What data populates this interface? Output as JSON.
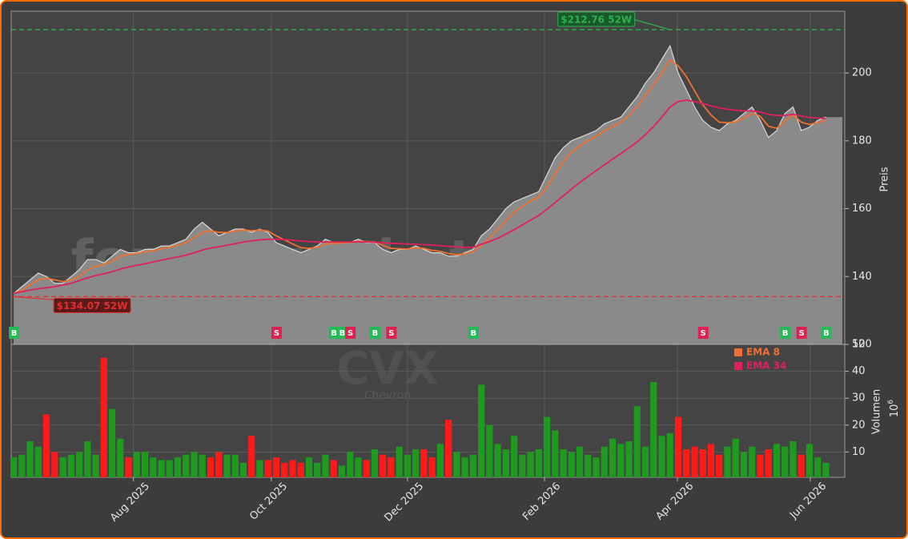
{
  "chart_data": {
    "type": "stock",
    "price_label": "Preis",
    "volume_label": "Volumen",
    "volume_unit": {
      "base": "10",
      "exp": "6"
    },
    "watermark": "forexsignale.trade",
    "ticker": "CVX",
    "company": "Chevron",
    "xlim": [
      -0.3,
      101.3
    ],
    "xticks": [
      {
        "value": 14.6,
        "label": "Aug 2025"
      },
      {
        "value": 31.4,
        "label": "Oct 2025"
      },
      {
        "value": 48.0,
        "label": "Dec 2025"
      },
      {
        "value": 64.7,
        "label": "Feb 2026"
      },
      {
        "value": 80.9,
        "label": "Apr 2026"
      },
      {
        "value": 97.1,
        "label": "Jun 2026"
      }
    ],
    "ylim": [
      120,
      218.2
    ],
    "yticks": [
      120,
      140,
      160,
      180,
      200
    ],
    "y2lim": [
      0,
      50
    ],
    "y2ticks": [
      10,
      20,
      30,
      40,
      50
    ],
    "grid": true,
    "area_color": "#8a8a8a",
    "close_color": "#d8d8d8",
    "up_color": "#1e9a1e",
    "down_color": "#ff1a1a",
    "close": [
      135,
      137,
      139,
      141,
      140,
      138,
      138,
      140,
      142,
      145,
      145,
      144,
      146,
      148,
      147,
      147,
      148,
      148,
      149,
      149,
      150,
      151,
      154,
      156,
      154,
      152,
      153,
      154,
      154,
      153,
      154,
      153,
      150,
      149,
      148,
      147,
      148,
      149,
      151,
      150,
      150,
      150,
      151,
      150,
      150,
      148,
      147,
      148,
      148,
      149,
      148,
      147,
      147,
      146,
      146,
      147,
      148,
      152,
      154,
      157,
      160,
      162,
      163,
      164,
      165,
      170,
      175,
      178,
      180,
      181,
      182,
      183,
      185,
      186,
      187,
      190,
      193,
      197,
      200,
      204,
      208,
      200,
      195,
      190,
      186,
      184,
      183,
      185,
      186,
      188,
      190,
      186,
      181,
      183,
      188,
      190,
      183,
      184,
      186,
      187
    ],
    "series": [
      {
        "name": "EMA 8",
        "color": "#f07030",
        "values": [
          135,
          136,
          137.5,
          139,
          139.5,
          139,
          138.5,
          139,
          140,
          142,
          143,
          143.5,
          144.5,
          146,
          146.5,
          146.8,
          147.3,
          147.6,
          148.2,
          148.6,
          149.3,
          150,
          151.5,
          153,
          153.5,
          153,
          153,
          153.4,
          153.7,
          153.5,
          153.7,
          153.4,
          152,
          150.8,
          149.6,
          148.5,
          148.3,
          148.6,
          149.6,
          149.8,
          149.9,
          150,
          150.4,
          150.3,
          150.2,
          149.2,
          148.3,
          148.2,
          148.1,
          148.5,
          148.3,
          147.7,
          147.4,
          146.8,
          146.4,
          146.7,
          147.3,
          149.3,
          151.3,
          153.8,
          156.5,
          158.9,
          160.7,
          162.2,
          163.4,
          166.4,
          170.3,
          173.8,
          176.6,
          178.5,
          180,
          181.3,
          182.9,
          184.2,
          185.4,
          187.5,
          190,
          193.3,
          196.5,
          200,
          203.8,
          202.1,
          198.9,
          194.7,
          190.6,
          187.6,
          185.5,
          185.3,
          185.6,
          186.7,
          188.2,
          187.2,
          184.3,
          183.7,
          185.7,
          187.7,
          185.5,
          184.8,
          185.4,
          186.1
        ]
      },
      {
        "name": "EMA 34",
        "color": "#e0205a",
        "values": [
          135,
          135.5,
          136,
          136.4,
          136.7,
          137,
          137.5,
          138,
          138.8,
          139.6,
          140.3,
          140.8,
          141.4,
          142.2,
          142.8,
          143.3,
          143.8,
          144.3,
          144.8,
          145.3,
          145.8,
          146.3,
          147,
          147.8,
          148.4,
          148.8,
          149.2,
          149.7,
          150.2,
          150.5,
          150.8,
          151,
          151,
          150.9,
          150.7,
          150.5,
          150.3,
          150.2,
          150.2,
          150.2,
          150.2,
          150.2,
          150.2,
          150.2,
          150.1,
          150,
          149.8,
          149.7,
          149.6,
          149.5,
          149.4,
          149.3,
          149.1,
          148.9,
          148.7,
          148.6,
          148.6,
          149.5,
          150.3,
          151.3,
          152.5,
          153.8,
          155.2,
          156.6,
          158,
          159.8,
          161.8,
          163.8,
          165.8,
          167.7,
          169.5,
          171.2,
          172.9,
          174.6,
          176.2,
          177.9,
          179.7,
          181.8,
          184.2,
          187,
          190,
          191.6,
          192,
          191.6,
          191,
          190.3,
          189.7,
          189.3,
          189,
          188.8,
          188.8,
          188.5,
          187.8,
          187.5,
          187.5,
          187.8,
          187.3,
          186.9,
          186.7,
          186.6
        ]
      }
    ],
    "volume": [
      8,
      9,
      14,
      12,
      24,
      10,
      8,
      9,
      10,
      14,
      9,
      45,
      26,
      15,
      8,
      10,
      10,
      8,
      7,
      7,
      8,
      9,
      10,
      9,
      8,
      10,
      9,
      9,
      6,
      16,
      7,
      7,
      8,
      6,
      7,
      6,
      8,
      6,
      9,
      7,
      5,
      10,
      8,
      7,
      11,
      9,
      8,
      12,
      9,
      11,
      11,
      8,
      13,
      22,
      10,
      8,
      9,
      35,
      20,
      13,
      11,
      16,
      9,
      10,
      11,
      23,
      18,
      11,
      10,
      12,
      9,
      8,
      12,
      15,
      13,
      14,
      27,
      12,
      36,
      16,
      17,
      23,
      11,
      12,
      11,
      13,
      9,
      12,
      15,
      10,
      12,
      9,
      11,
      13,
      12,
      14,
      9,
      13,
      8,
      6
    ],
    "high_52w": {
      "value": 212.76,
      "label": "$212.76 52W",
      "index": 80,
      "color": "#2fb04f"
    },
    "low_52w": {
      "value": 134.07,
      "label": "$134.07 52W",
      "index": 0,
      "color": "#e03030"
    },
    "signal_colors": {
      "B": "#22bb55",
      "S": "#e0204f"
    },
    "signals": [
      {
        "index": 0,
        "label": "B"
      },
      {
        "index": 32,
        "label": "S"
      },
      {
        "index": 39,
        "label": "B"
      },
      {
        "index": 40,
        "label": "B"
      },
      {
        "index": 41,
        "label": "S"
      },
      {
        "index": 44,
        "label": "B"
      },
      {
        "index": 46,
        "label": "S"
      },
      {
        "index": 56,
        "label": "B"
      },
      {
        "index": 84,
        "label": "S"
      },
      {
        "index": 94,
        "label": "B"
      },
      {
        "index": 96,
        "label": "S"
      },
      {
        "index": 99,
        "label": "B"
      }
    ]
  }
}
